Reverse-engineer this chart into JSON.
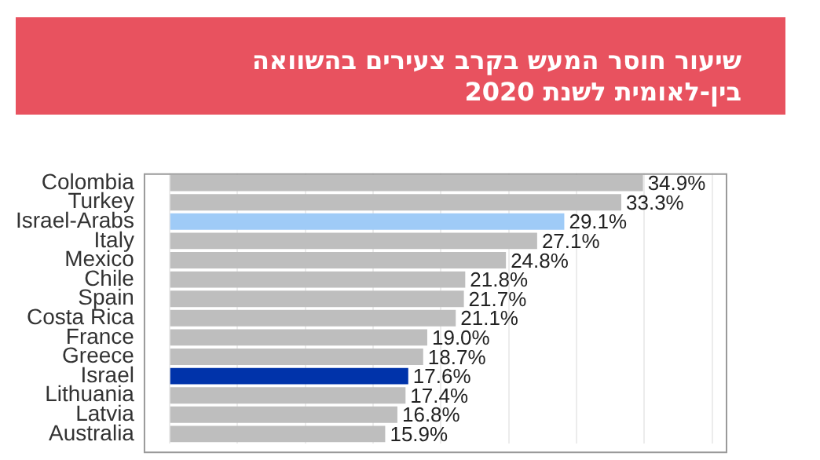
{
  "chart_data": {
    "type": "bar",
    "orientation": "horizontal",
    "title": "שיעור חוסר המעש בקרב צעירים בהשוואה בין-לאומית לשנת 2020",
    "categories": [
      "Colombia",
      "Turkey",
      "Israel-Arabs",
      "Italy",
      "Mexico",
      "Chile",
      "Spain",
      "Costa Rica",
      "France",
      "Greece",
      "Israel",
      "Lithuania",
      "Latvia",
      "Australia"
    ],
    "values": [
      34.9,
      33.3,
      29.1,
      27.1,
      24.8,
      21.8,
      21.7,
      21.1,
      19.0,
      18.7,
      17.6,
      17.4,
      16.8,
      15.9
    ],
    "colors": [
      "#bebebe",
      "#bebebe",
      "#9fcbf7",
      "#bebebe",
      "#bebebe",
      "#bebebe",
      "#bebebe",
      "#bebebe",
      "#bebebe",
      "#bebebe",
      "#0033aa",
      "#bebebe",
      "#bebebe",
      "#bebebe"
    ],
    "value_labels": [
      "34.9%",
      "33.3%",
      "29.1%",
      "27.1%",
      "24.8%",
      "21.8%",
      "21.7%",
      "21.1%",
      "19.0%",
      "18.7%",
      "17.6%",
      "17.4%",
      "16.8%",
      "15.9%"
    ],
    "xlim": [
      -1.9,
      41
    ],
    "xticks": [
      {
        "value": 0,
        "label": null
      },
      {
        "value": 5,
        "label": null
      },
      {
        "value": 10,
        "label": null
      },
      {
        "value": 15,
        "label": null
      },
      {
        "value": 20,
        "label": null
      },
      {
        "value": 25,
        "label": null
      },
      {
        "value": 30,
        "label": null
      },
      {
        "value": 35,
        "label": null
      },
      {
        "value": 40,
        "label": null
      }
    ],
    "tick_labels": "y",
    "grid": "x",
    "legend": false
  }
}
